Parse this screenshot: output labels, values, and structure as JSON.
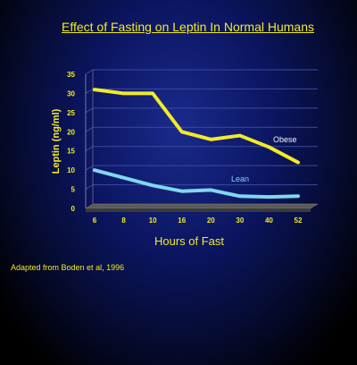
{
  "chart_data": {
    "type": "line",
    "title": "Effect of Fasting on Leptin In Normal Humans",
    "xlabel": "Hours of Fast",
    "ylabel": "Leptin (ng/ml)",
    "categories": [
      "6",
      "8",
      "10",
      "16",
      "20",
      "30",
      "40",
      "52"
    ],
    "yticks": [
      "0",
      "5",
      "10",
      "15",
      "20",
      "25",
      "30",
      "35"
    ],
    "ylim": [
      0,
      35
    ],
    "grid": true,
    "series": [
      {
        "name": "Obese",
        "color": "#f2ea28",
        "values": [
          31,
          30,
          30,
          20,
          18,
          19,
          16,
          12
        ]
      },
      {
        "name": "Lean",
        "color": "#7fd8f0",
        "values": [
          10,
          8,
          6,
          4.5,
          4.8,
          3.2,
          3,
          3.2
        ]
      }
    ]
  },
  "footnote": "Adapted from Boden et al, 1996"
}
